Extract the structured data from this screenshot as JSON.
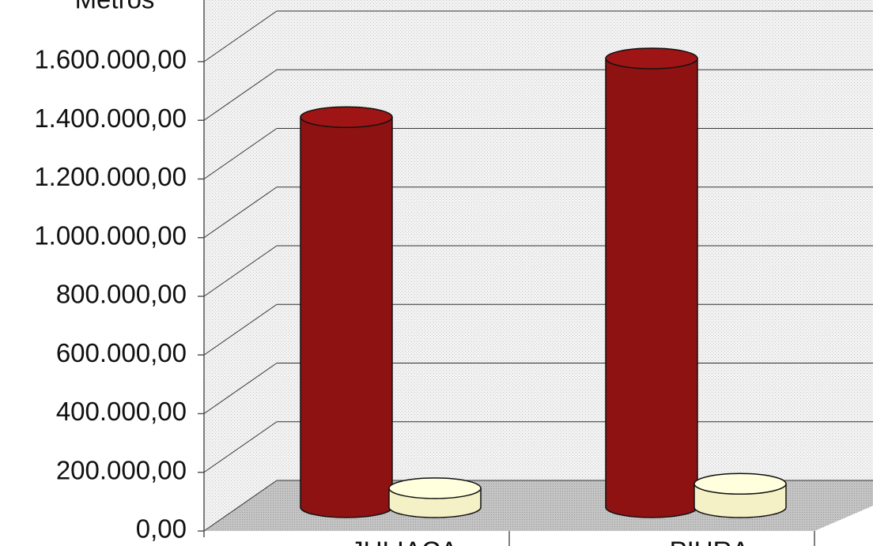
{
  "chart_data": {
    "type": "bar3d",
    "y_label": "Metros",
    "categories": [
      "JULIACA",
      "PIURA"
    ],
    "series": [
      {
        "color": "#8e1212",
        "values": [
          1330000,
          1530000
        ]
      },
      {
        "color": "#f4f1c6",
        "values": [
          65000,
          80000
        ]
      }
    ],
    "ylim": [
      0,
      1600000
    ],
    "yticks": [
      {
        "value": 0,
        "label": "0,00"
      },
      {
        "value": 200000,
        "label": "200.000,00"
      },
      {
        "value": 400000,
        "label": "400.000,00"
      },
      {
        "value": 600000,
        "label": "600.000,00"
      },
      {
        "value": 800000,
        "label": "800.000,00"
      },
      {
        "value": 1000000,
        "label": "1.000.000,00"
      },
      {
        "value": 1200000,
        "label": "1.200.000,00"
      },
      {
        "value": 1400000,
        "label": "1.400.000,00"
      },
      {
        "value": 1600000,
        "label": "1.600.000,00"
      }
    ],
    "grid": true
  }
}
